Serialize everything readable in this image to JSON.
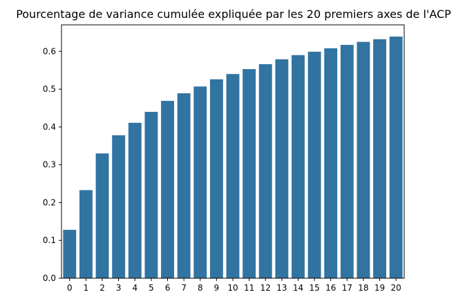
{
  "chart_data": {
    "type": "bar",
    "title": "Pourcentage de variance cumulée expliquée par les 20 premiers axes de l'ACP",
    "xlabel": "",
    "ylabel": "",
    "categories": [
      "0",
      "1",
      "2",
      "3",
      "4",
      "5",
      "6",
      "7",
      "8",
      "9",
      "10",
      "11",
      "12",
      "13",
      "14",
      "15",
      "16",
      "17",
      "18",
      "19",
      "20"
    ],
    "values": [
      0.128,
      0.233,
      0.33,
      0.378,
      0.411,
      0.44,
      0.469,
      0.489,
      0.507,
      0.526,
      0.54,
      0.553,
      0.566,
      0.579,
      0.59,
      0.599,
      0.608,
      0.617,
      0.625,
      0.632,
      0.639
    ],
    "yticks": [
      "0.0",
      "0.1",
      "0.2",
      "0.3",
      "0.4",
      "0.5",
      "0.6"
    ],
    "ylim": [
      0,
      0.67
    ],
    "grid": false,
    "bar_color": "#3274a1"
  }
}
